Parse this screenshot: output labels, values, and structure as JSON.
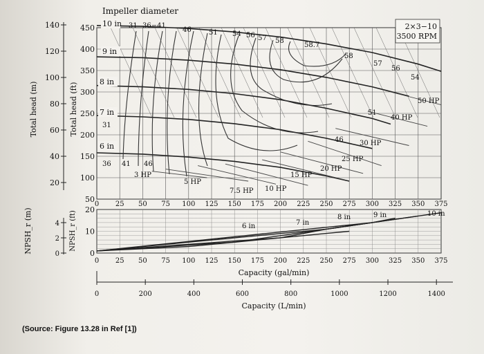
{
  "source_note": "(Source: Figure 13.28 in Ref [1])",
  "chart_data": [
    {
      "type": "line",
      "title": "Impeller diameter",
      "pump_label_1": "2×3−10",
      "pump_label_2": "3500 RPM",
      "xlabel_gpm": "Capacity (gal/min)",
      "xlabel_lpm": "Capacity (L/min)",
      "ylabel_ft": "Total head (ft)",
      "ylabel_m": "Total head (m)",
      "xlim_gpm": [
        0,
        375
      ],
      "ylim_ft": [
        50,
        450
      ],
      "ft_ticks": [
        "450",
        "400",
        "350",
        "300",
        "250",
        "200",
        "150",
        "100",
        "50"
      ],
      "m_ticks": [
        "140",
        "120",
        "100",
        "80",
        "60",
        "40",
        "20"
      ],
      "gpm_ticks": [
        "0",
        "25",
        "50",
        "75",
        "100",
        "125",
        "150",
        "175",
        "200",
        "225",
        "250",
        "275",
        "300",
        "325",
        "350",
        "375"
      ],
      "lpm_ticks": [
        "0",
        "200",
        "400",
        "600",
        "800",
        "1000",
        "1200",
        "1400"
      ],
      "impeller_curves": [
        {
          "name": "10 in",
          "x": [
            0,
            50,
            100,
            150,
            200,
            250,
            300,
            350,
            375
          ],
          "y": [
            455,
            453,
            448,
            440,
            428,
            412,
            392,
            365,
            348
          ]
        },
        {
          "name": "9 in",
          "x": [
            0,
            50,
            100,
            150,
            200,
            250,
            300,
            340
          ],
          "y": [
            382,
            380,
            374,
            365,
            352,
            334,
            312,
            290
          ]
        },
        {
          "name": "8 in",
          "x": [
            0,
            50,
            100,
            150,
            200,
            250,
            300,
            320
          ],
          "y": [
            315,
            312,
            306,
            296,
            282,
            262,
            238,
            225
          ]
        },
        {
          "name": "7 in",
          "x": [
            0,
            50,
            100,
            150,
            200,
            250,
            300
          ],
          "y": [
            245,
            242,
            236,
            226,
            212,
            192,
            168
          ]
        },
        {
          "name": "6 in",
          "x": [
            0,
            50,
            100,
            150,
            200,
            250,
            275
          ],
          "y": [
            158,
            155,
            148,
            138,
            124,
            104,
            92
          ]
        }
      ],
      "curve_labels": [
        "10 in",
        "9 in",
        "8 in",
        "7 in",
        "6 in"
      ],
      "efficiency_labels": [
        "31",
        "36−41",
        "46",
        "51",
        "54",
        "56",
        "57",
        "58",
        "58.7",
        "58",
        "57",
        "56",
        "54",
        "51",
        "46",
        "31",
        "36",
        "41",
        "46",
        "46"
      ],
      "power_labels": [
        "3 HP",
        "5 HP",
        "7.5 HP",
        "10 HP",
        "15 HP",
        "20 HP",
        "25 HP",
        "30 HP",
        "40 HP",
        "50 HP"
      ],
      "power_lines": [
        {
          "name": "3 HP",
          "x": [
            60,
            120
          ],
          "y": [
            115,
            100
          ]
        },
        {
          "name": "5 HP",
          "x": [
            75,
            165
          ],
          "y": [
            120,
            92
          ]
        },
        {
          "name": "7.5 HP",
          "x": [
            110,
            195
          ],
          "y": [
            128,
            85
          ]
        },
        {
          "name": "10 HP",
          "x": [
            140,
            230
          ],
          "y": [
            132,
            82
          ]
        },
        {
          "name": "15 HP",
          "x": [
            180,
            270
          ],
          "y": [
            142,
            95
          ]
        },
        {
          "name": "20 HP",
          "x": [
            200,
            290
          ],
          "y": [
            160,
            110
          ]
        },
        {
          "name": "25 HP",
          "x": [
            230,
            310
          ],
          "y": [
            185,
            128
          ]
        },
        {
          "name": "30 HP",
          "x": [
            260,
            340
          ],
          "y": [
            215,
            175
          ]
        },
        {
          "name": "40 HP",
          "x": [
            295,
            360
          ],
          "y": [
            255,
            220
          ]
        },
        {
          "name": "50 HP",
          "x": [
            320,
            375
          ],
          "y": [
            300,
            270
          ]
        }
      ]
    },
    {
      "type": "line",
      "ylabel_ft": "NPSH_r (ft)",
      "ylabel_m": "NPSH_r (m)",
      "xlim_gpm": [
        0,
        375
      ],
      "ylim_ft": [
        0,
        20
      ],
      "ft_ticks": [
        "20",
        "10",
        "0"
      ],
      "m_ticks": [
        "4",
        "2",
        "0"
      ],
      "series": [
        {
          "name": "6 in",
          "x": [
            0,
            100,
            150,
            200,
            250,
            275
          ],
          "y": [
            1,
            3,
            5,
            7,
            9,
            10
          ]
        },
        {
          "name": "7 in",
          "x": [
            0,
            150,
            200,
            250,
            300
          ],
          "y": [
            1,
            5,
            8,
            11,
            14
          ]
        },
        {
          "name": "8 in",
          "x": [
            0,
            200,
            250,
            300,
            325
          ],
          "y": [
            1,
            7,
            11,
            14,
            16
          ]
        },
        {
          "name": "9 in",
          "x": [
            0,
            250,
            300,
            350
          ],
          "y": [
            1,
            11,
            14,
            17
          ]
        },
        {
          "name": "10 in",
          "x": [
            0,
            300,
            350,
            375
          ],
          "y": [
            1,
            14,
            17,
            18.5
          ]
        }
      ]
    }
  ]
}
